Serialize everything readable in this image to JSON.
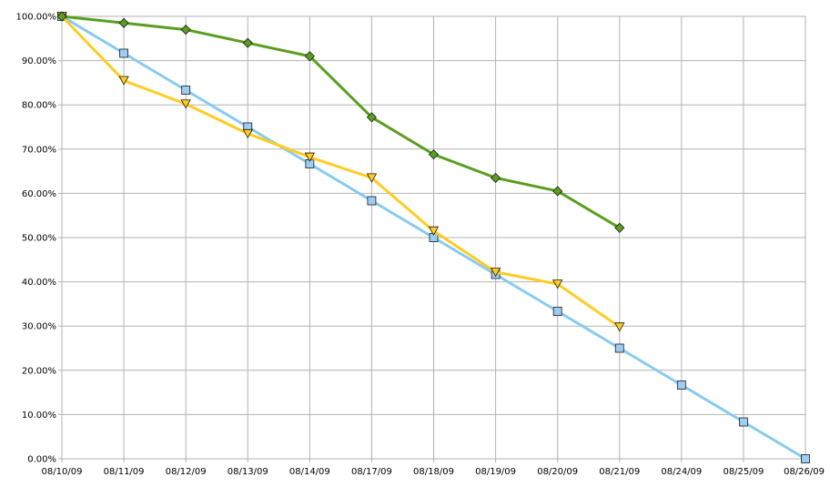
{
  "chart_data": {
    "type": "line",
    "categories": [
      "08/10/09",
      "08/11/09",
      "08/12/09",
      "08/13/09",
      "08/14/09",
      "08/17/09",
      "08/18/09",
      "08/19/09",
      "08/20/09",
      "08/21/09",
      "08/24/09",
      "08/25/09",
      "08/26/09"
    ],
    "y_ticks": [
      "0.00%",
      "10.00%",
      "20.00%",
      "30.00%",
      "40.00%",
      "50.00%",
      "60.00%",
      "70.00%",
      "80.00%",
      "90.00%",
      "100.00%"
    ],
    "ylim": [
      0,
      100
    ],
    "grid": true,
    "legend": "none",
    "series": [
      {
        "marker": "square",
        "color": "#87cbf0",
        "marker_fill": "#9dcdf5",
        "values": [
          100,
          91.67,
          83.33,
          75,
          66.67,
          58.33,
          50,
          41.67,
          33.33,
          25,
          16.67,
          8.33,
          0
        ]
      },
      {
        "marker": "triangle-down",
        "color": "#ffcc22",
        "marker_fill": "#ffcc22",
        "values": [
          100,
          85.5,
          80.2,
          73.5,
          68.2,
          63.5,
          51.5,
          42.2,
          39.5,
          29.8,
          null,
          null,
          null
        ]
      },
      {
        "marker": "diamond",
        "color": "#5a9e1f",
        "marker_fill": "#5a9e1f",
        "values": [
          100,
          98.5,
          97,
          94,
          91,
          77.2,
          68.8,
          63.5,
          60.5,
          52.2,
          null,
          null,
          null
        ]
      }
    ]
  }
}
